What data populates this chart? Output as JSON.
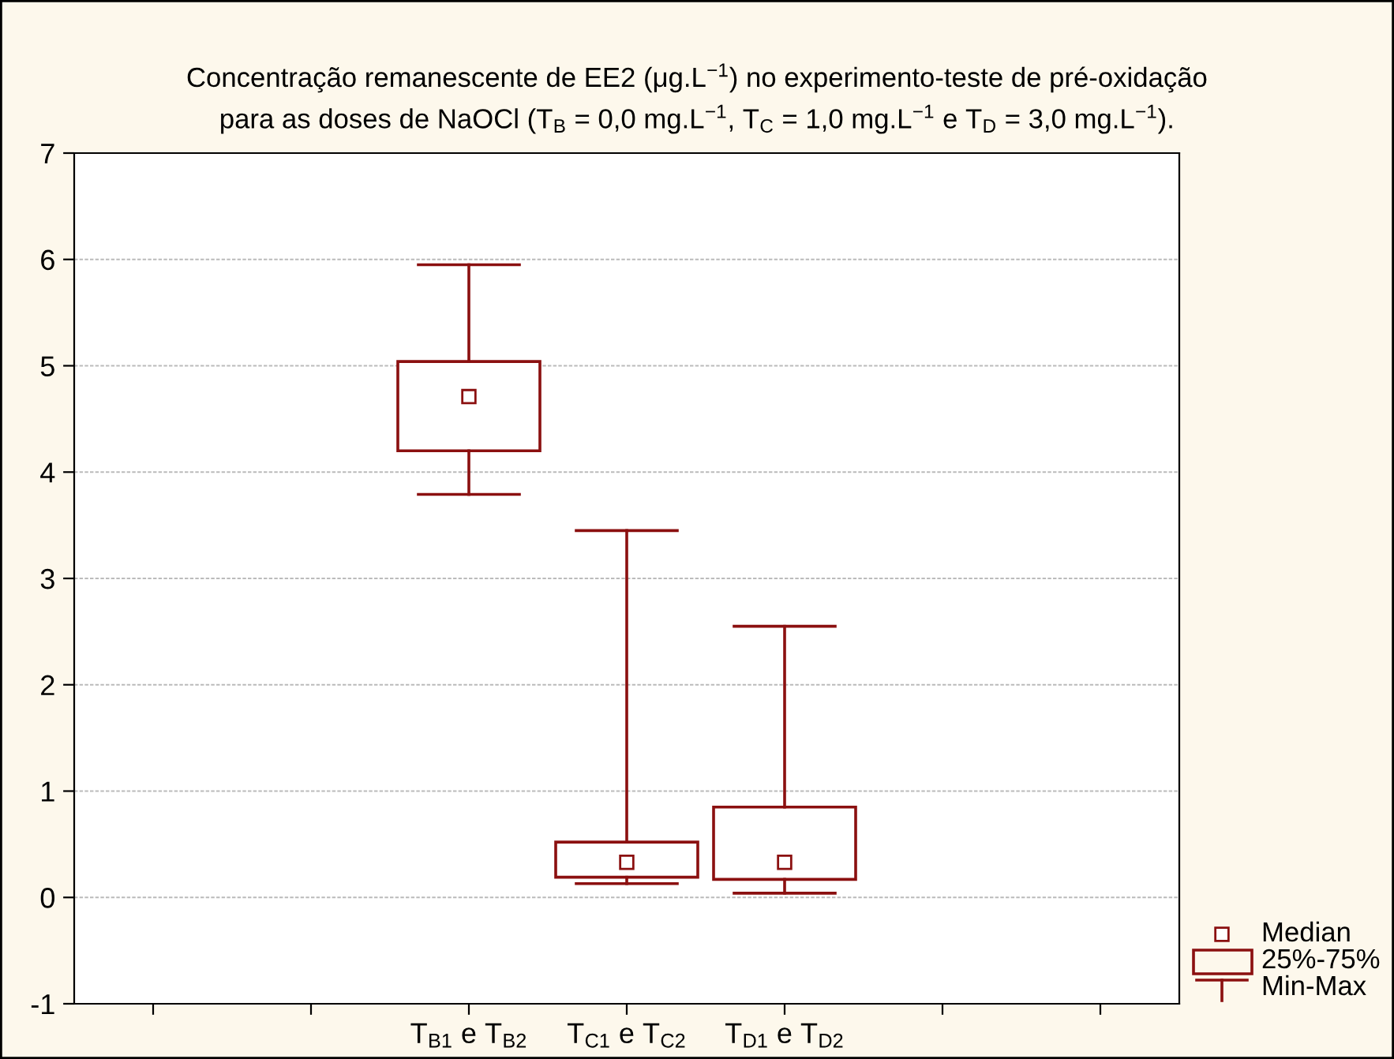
{
  "chart_data": {
    "type": "box",
    "title": "Concentração remanescente de EE2 (μg.L$^{−1}$) no experimento-teste de pré-oxidação\npara as doses de NaOCl (T$_{B}$ = 0,0 mg.L$^{−1}$, T$_{C}$ = 1,0 mg.L$^{−1}$ e T$_{D}$ = 3,0 mg.L$^{−1}$).",
    "categories": [
      null,
      null,
      "T$_{B1}$ e T$_{B2}$",
      "T$_{C1}$ e T$_{C2}$",
      "T$_{D1}$ e T$_{D2}$",
      null,
      null
    ],
    "color": "#8b1010",
    "boxes": [
      null,
      null,
      {
        "low": 3.79,
        "q1": 4.2,
        "median": 4.71,
        "q3": 5.04,
        "high": 5.95
      },
      {
        "low": 0.13,
        "q1": 0.19,
        "median": 0.33,
        "q3": 0.52,
        "high": 3.45
      },
      {
        "low": 0.04,
        "q1": 0.17,
        "median": 0.33,
        "q3": 0.85,
        "high": 2.55
      },
      null,
      null
    ],
    "ylim": [
      -1,
      7
    ],
    "yticks": [
      {
        "value": -1,
        "label": "-1"
      },
      0,
      1,
      2,
      3,
      4,
      5,
      6,
      7
    ],
    "grid": "y",
    "annotations": [
      "Median",
      "25%-75%",
      "Min-Max"
    ]
  }
}
